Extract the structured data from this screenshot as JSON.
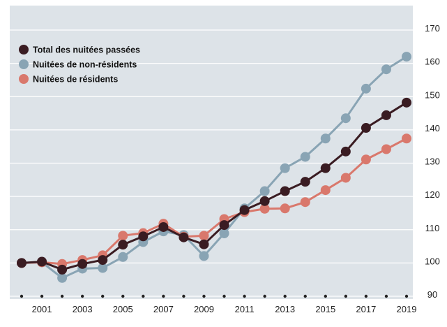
{
  "chart_data": {
    "type": "line",
    "title": "",
    "xlabel": "",
    "ylabel": "",
    "x": [
      2000,
      2001,
      2002,
      2003,
      2004,
      2005,
      2006,
      2007,
      2008,
      2009,
      2010,
      2011,
      2012,
      2013,
      2014,
      2015,
      2016,
      2017,
      2018,
      2019
    ],
    "x_tick_labels": [
      "2001",
      "2003",
      "2005",
      "2007",
      "2009",
      "2011",
      "2013",
      "2015",
      "2017",
      "2019"
    ],
    "y_tick_labels": [
      "90",
      "100",
      "110",
      "120",
      "130",
      "140",
      "150",
      "160",
      "170"
    ],
    "xlim": [
      2000,
      2019
    ],
    "ylim": [
      90,
      170
    ],
    "grid": "horizontal",
    "legend_position": "top-left",
    "colors": {
      "background": "#dde3e8",
      "grid": "#ffffff"
    },
    "series": [
      {
        "name": "Total des nuitées passées",
        "color": "#3a1c22",
        "values": [
          100,
          100.4,
          98,
          99.7,
          100.9,
          105.5,
          108,
          110.8,
          107.7,
          105.6,
          111.4,
          115.9,
          118.6,
          121.6,
          124.4,
          128.5,
          133.5,
          140.6,
          144.4,
          148.2
        ]
      },
      {
        "name": "Nuitées de non-résidents",
        "color": "#89a4b4",
        "values": [
          100,
          100.2,
          95.5,
          98.3,
          98.5,
          101.8,
          106.3,
          109.5,
          108.4,
          102.1,
          108.9,
          116.4,
          121.6,
          128.5,
          131.9,
          137.4,
          143.5,
          152.4,
          158.2,
          162
        ]
      },
      {
        "name": "Nuitées de résidents",
        "color": "#d9786c",
        "values": [
          100,
          100.2,
          99.7,
          100.9,
          102.3,
          108.2,
          109,
          111.8,
          107.9,
          108.2,
          113.2,
          115.3,
          116.3,
          116.4,
          118.3,
          121.9,
          125.6,
          131.1,
          134.2,
          137.4
        ]
      }
    ]
  }
}
